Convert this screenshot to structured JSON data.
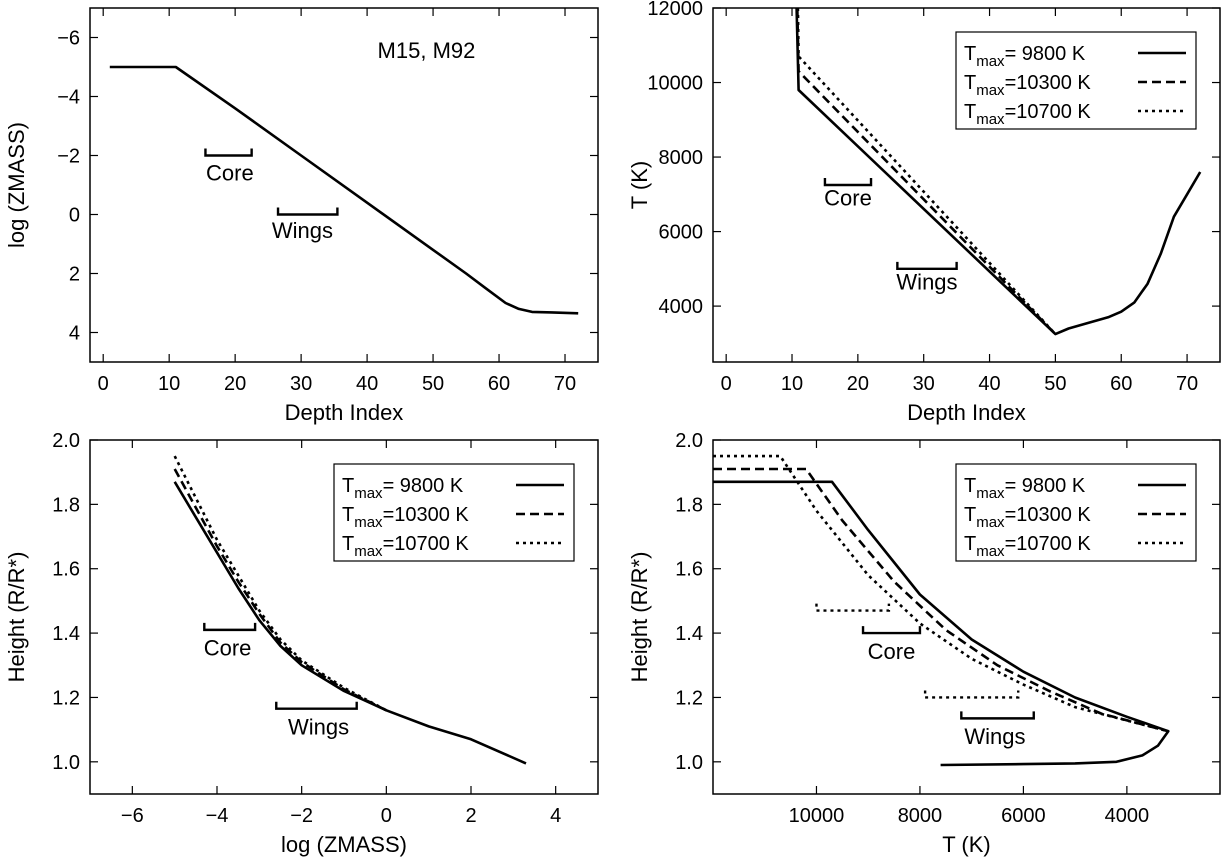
{
  "chart_data": [
    {
      "id": "p1",
      "type": "line",
      "xlabel": "Depth Index",
      "ylabel": "log (ZMASS)",
      "xlim": [
        -2,
        75
      ],
      "ylim": [
        5,
        -7
      ],
      "y_inverted": true,
      "xticks": [
        0,
        10,
        20,
        30,
        40,
        50,
        60,
        70
      ],
      "xtick_labels": [
        "0",
        "10",
        "20",
        "30",
        "40",
        "50",
        "60",
        "70"
      ],
      "yticks": [
        -6,
        -4,
        -2,
        0,
        2,
        4
      ],
      "ytick_labels": [
        "−6",
        "−4",
        "−2",
        "0",
        "2",
        "4"
      ],
      "annotations": [
        {
          "text": "M15, M92",
          "x": 49,
          "y": -5.3
        },
        {
          "text": "Core",
          "x": 19.2,
          "y": -1.15
        },
        {
          "text": "Wings",
          "x": 30.2,
          "y": 0.8
        }
      ],
      "brackets": [
        {
          "x1": 15.5,
          "x2": 22.5,
          "y": -2.0,
          "style": "solid"
        },
        {
          "x1": 26.5,
          "x2": 35.5,
          "y": 0.0,
          "style": "solid"
        }
      ],
      "series": [
        {
          "style": "solid",
          "x": [
            1,
            11,
            20,
            30,
            40,
            50,
            55,
            58,
            61,
            63,
            65,
            68,
            72
          ],
          "y": [
            -5.0,
            -5.0,
            -3.6,
            -2.0,
            -0.4,
            1.2,
            2.0,
            2.5,
            3.0,
            3.2,
            3.3,
            3.32,
            3.35
          ]
        }
      ]
    },
    {
      "id": "p2",
      "type": "line",
      "xlabel": "Depth Index",
      "ylabel": "T (K)",
      "xlim": [
        -2,
        75
      ],
      "ylim": [
        2500,
        12000
      ],
      "xticks": [
        0,
        10,
        20,
        30,
        40,
        50,
        60,
        70
      ],
      "xtick_labels": [
        "0",
        "10",
        "20",
        "30",
        "40",
        "50",
        "60",
        "70"
      ],
      "yticks": [
        4000,
        6000,
        8000,
        10000,
        12000
      ],
      "ytick_labels": [
        "4000",
        "6000",
        "8000",
        "10000",
        "12000"
      ],
      "legend": {
        "position": "top-right",
        "entries": [
          {
            "pre": "T",
            "sub": "max",
            "post": "=  9800 K",
            "style": "solid"
          },
          {
            "pre": "T",
            "sub": "max",
            "post": "=10300 K",
            "style": "dashed"
          },
          {
            "pre": "T",
            "sub": "max",
            "post": "=10700 K",
            "style": "dotted"
          }
        ]
      },
      "annotations": [
        {
          "text": "Core",
          "x": 18.5,
          "y": 6700
        },
        {
          "text": "Wings",
          "x": 30.5,
          "y": 4450
        }
      ],
      "brackets": [
        {
          "x1": 15,
          "x2": 22,
          "y": 7250,
          "style": "solid"
        },
        {
          "x1": 26,
          "x2": 35,
          "y": 5000,
          "style": "solid"
        }
      ],
      "series": [
        {
          "name": "T_max=9800 K",
          "style": "solid",
          "x": [
            10.7,
            11,
            50,
            52,
            55,
            58,
            60,
            62,
            64,
            66,
            68,
            70,
            72
          ],
          "y": [
            12000,
            9800,
            3250,
            3400,
            3550,
            3700,
            3850,
            4100,
            4600,
            5400,
            6400,
            7000,
            7600
          ]
        },
        {
          "name": "T_max=10300 K",
          "style": "dashed",
          "x": [
            10.8,
            11,
            50
          ],
          "y": [
            12000,
            10300,
            3250
          ]
        },
        {
          "name": "T_max=10700 K",
          "style": "dotted",
          "x": [
            10.9,
            11,
            50
          ],
          "y": [
            12000,
            10700,
            3250
          ]
        }
      ]
    },
    {
      "id": "p3",
      "type": "line",
      "xlabel": "log (ZMASS)",
      "ylabel": "Height (R/R*)",
      "xlim": [
        -7,
        5
      ],
      "ylim": [
        0.9,
        2.0
      ],
      "xticks": [
        -6,
        -4,
        -2,
        0,
        2,
        4
      ],
      "xtick_labels": [
        "−6",
        "−4",
        "−2",
        "0",
        "2",
        "4"
      ],
      "yticks": [
        1.0,
        1.2,
        1.4,
        1.6,
        1.8,
        2.0
      ],
      "ytick_labels": [
        "1.0",
        "1.2",
        "1.4",
        "1.6",
        "1.8",
        "2.0"
      ],
      "legend": {
        "position": "top-right",
        "entries": [
          {
            "pre": "T",
            "sub": "max",
            "post": "=  9800 K",
            "style": "solid"
          },
          {
            "pre": "T",
            "sub": "max",
            "post": "=10300 K",
            "style": "dashed"
          },
          {
            "pre": "T",
            "sub": "max",
            "post": "=10700 K",
            "style": "dotted"
          }
        ]
      },
      "annotations": [
        {
          "text": "Core",
          "x": -3.75,
          "y": 1.33
        },
        {
          "text": "Wings",
          "x": -1.6,
          "y": 1.085
        }
      ],
      "brackets": [
        {
          "x1": -4.3,
          "x2": -3.1,
          "y": 1.41,
          "style": "solid"
        },
        {
          "x1": -2.6,
          "x2": -0.7,
          "y": 1.165,
          "style": "solid"
        }
      ],
      "series": [
        {
          "name": "T_max=9800 K",
          "style": "solid",
          "x": [
            -5.0,
            -4.5,
            -4.0,
            -3.5,
            -3.0,
            -2.5,
            -2.0,
            -1.0,
            0,
            1.0,
            2.0,
            3.3
          ],
          "y": [
            1.87,
            1.76,
            1.65,
            1.54,
            1.44,
            1.36,
            1.3,
            1.22,
            1.16,
            1.11,
            1.07,
            0.995
          ]
        },
        {
          "name": "T_max=10300 K",
          "style": "dashed",
          "x": [
            -5.0,
            -4.5,
            -4.0,
            -3.5,
            -3.0,
            -2.5,
            -2.0,
            -1.0,
            0
          ],
          "y": [
            1.91,
            1.79,
            1.67,
            1.56,
            1.46,
            1.37,
            1.31,
            1.225,
            1.16
          ]
        },
        {
          "name": "T_max=10700 K",
          "style": "dotted",
          "x": [
            -5.0,
            -4.5,
            -4.0,
            -3.5,
            -3.0,
            -2.5,
            -2.0,
            -1.0,
            0
          ],
          "y": [
            1.95,
            1.82,
            1.69,
            1.58,
            1.47,
            1.38,
            1.315,
            1.23,
            1.16
          ]
        }
      ]
    },
    {
      "id": "p4",
      "type": "line",
      "xlabel": "T (K)",
      "ylabel": "Height (R/R*)",
      "xlim": [
        12000,
        2200
      ],
      "x_inverted": true,
      "ylim": [
        0.9,
        2.0
      ],
      "xticks": [
        10000,
        8000,
        6000,
        4000
      ],
      "xtick_labels": [
        "10000",
        "8000",
        "6000",
        "4000"
      ],
      "yticks": [
        1.0,
        1.2,
        1.4,
        1.6,
        1.8,
        2.0
      ],
      "ytick_labels": [
        "1.0",
        "1.2",
        "1.4",
        "1.6",
        "1.8",
        "2.0"
      ],
      "legend": {
        "position": "top-right",
        "entries": [
          {
            "pre": "T",
            "sub": "max",
            "post": "=  9800 K",
            "style": "solid"
          },
          {
            "pre": "T",
            "sub": "max",
            "post": "=10300 K",
            "style": "dashed"
          },
          {
            "pre": "T",
            "sub": "max",
            "post": "=10700 K",
            "style": "dotted"
          }
        ]
      },
      "annotations": [
        {
          "text": "Core",
          "x": 8550,
          "y": 1.32
        },
        {
          "text": "Wings",
          "x": 6550,
          "y": 1.055
        }
      ],
      "brackets": [
        {
          "x1": 9100,
          "x2": 8000,
          "y": 1.4,
          "style": "solid"
        },
        {
          "x1": 7200,
          "x2": 5800,
          "y": 1.135,
          "style": "solid"
        },
        {
          "x1": 10000,
          "x2": 8600,
          "y": 1.47,
          "style": "dotted"
        },
        {
          "x1": 7900,
          "x2": 6100,
          "y": 1.2,
          "style": "dotted"
        }
      ],
      "series": [
        {
          "name": "T_max=9800 K",
          "style": "solid",
          "x": [
            12000,
            9700,
            9000,
            8000,
            7000,
            6000,
            5000,
            4000,
            3200,
            3400,
            3700,
            4200,
            5000,
            6000,
            7600
          ],
          "y": [
            1.87,
            1.87,
            1.72,
            1.52,
            1.38,
            1.28,
            1.2,
            1.14,
            1.095,
            1.05,
            1.02,
            1.0,
            0.995,
            0.993,
            0.99
          ]
        },
        {
          "name": "T_max=10300 K",
          "style": "dashed",
          "x": [
            12000,
            10200,
            9500,
            8500,
            7500,
            6500,
            5500,
            4500,
            3200
          ],
          "y": [
            1.91,
            1.91,
            1.75,
            1.56,
            1.41,
            1.3,
            1.22,
            1.15,
            1.095
          ]
        },
        {
          "name": "T_max=10700 K",
          "style": "dotted",
          "x": [
            12000,
            10700,
            10000,
            9000,
            8000,
            7000,
            6000,
            5000,
            3200
          ],
          "y": [
            1.95,
            1.95,
            1.78,
            1.58,
            1.43,
            1.32,
            1.24,
            1.17,
            1.095
          ]
        }
      ]
    }
  ]
}
